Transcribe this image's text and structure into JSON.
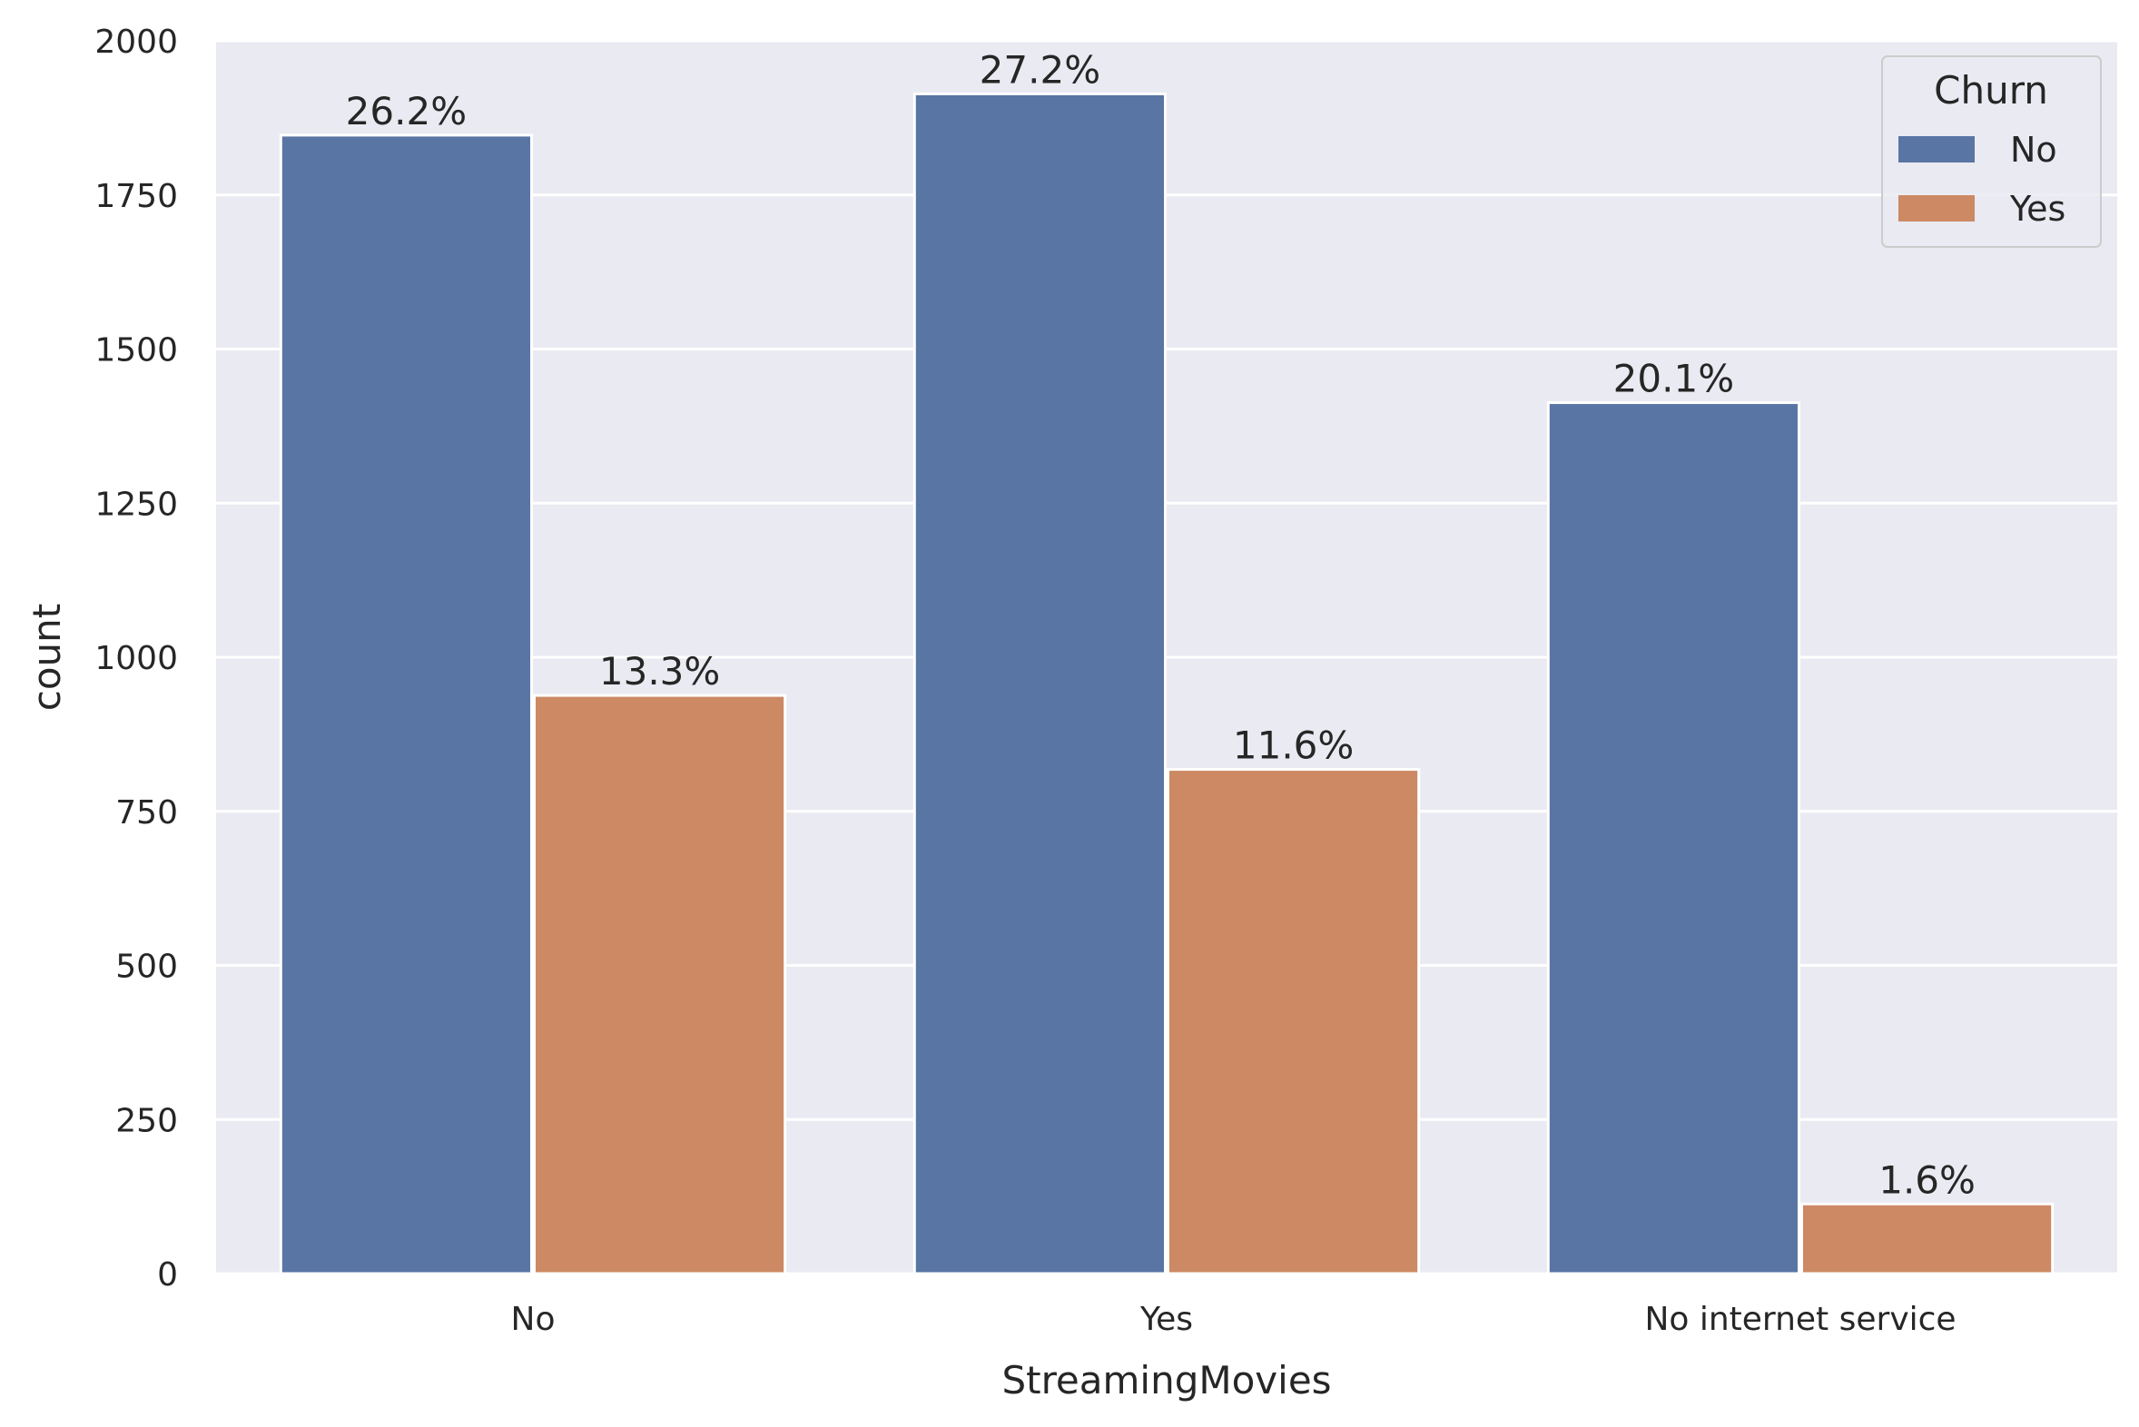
{
  "chart_data": {
    "type": "bar",
    "xlabel": "StreamingMovies",
    "ylabel": "count",
    "categories": [
      "No",
      "Yes",
      "No internet service"
    ],
    "series": [
      {
        "name": "No",
        "values": [
          1847,
          1914,
          1413
        ],
        "labels": [
          "26.2%",
          "27.2%",
          "20.1%"
        ],
        "color": "#5975a4"
      },
      {
        "name": "Yes",
        "values": [
          938,
          818,
          113
        ],
        "labels": [
          "13.3%",
          "11.6%",
          "1.6%"
        ],
        "color": "#cc8963"
      }
    ],
    "ylim": [
      0,
      2000
    ],
    "yticks": [
      0,
      250,
      500,
      750,
      1000,
      1250,
      1500,
      1750,
      2000
    ],
    "legend": {
      "title": "Churn",
      "placement": "top-right"
    },
    "grid": true,
    "background": "#eaeaf2"
  }
}
